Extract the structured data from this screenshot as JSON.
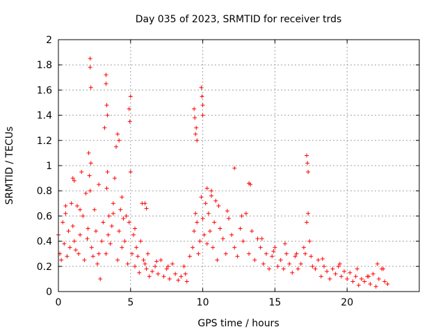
{
  "chart_data": {
    "type": "scatter",
    "title": "Day 035 of 2023, SRMTID for receiver trds",
    "xlabel": "GPS time / hours",
    "ylabel": "SRMTID / TECUs",
    "xlim": [
      0,
      25
    ],
    "ylim": [
      0,
      2
    ],
    "xticks": [
      0,
      5,
      10,
      15,
      20
    ],
    "yticks": [
      0,
      0.2,
      0.4,
      0.6,
      0.8,
      1,
      1.2,
      1.4,
      1.6,
      1.8,
      2
    ],
    "xtick_labels": [
      "0",
      "5",
      "10",
      "15",
      "20"
    ],
    "ytick_labels": [
      "0",
      "0.2",
      "0.4",
      "0.6",
      "0.8",
      "1",
      "1.2",
      "1.4",
      "1.6",
      "1.8",
      "2"
    ],
    "grid": true,
    "marker": "+",
    "color": "#ff0000",
    "series": [
      {
        "name": "SRMTID",
        "x": [
          0.0,
          0.1,
          0.2,
          0.3,
          0.4,
          0.5,
          0.6,
          0.7,
          0.8,
          0.9,
          1.0,
          1.1,
          1.2,
          1.3,
          1.4,
          1.5,
          1.6,
          1.7,
          1.8,
          1.9,
          2.0,
          2.05,
          2.1,
          2.15,
          2.2,
          2.25,
          2.3,
          2.4,
          2.5,
          2.6,
          2.7,
          2.8,
          2.9,
          3.0,
          3.1,
          3.2,
          3.3,
          3.35,
          3.4,
          3.45,
          3.5,
          3.6,
          3.7,
          3.8,
          3.9,
          4.0,
          4.1,
          4.2,
          4.3,
          4.4,
          4.5,
          4.6,
          4.7,
          4.8,
          4.9,
          5.0,
          5.1,
          5.2,
          5.3,
          5.4,
          5.5,
          5.6,
          5.7,
          5.8,
          5.9,
          6.0,
          6.1,
          6.2,
          6.3,
          6.5,
          6.7,
          6.9,
          7.1,
          7.3,
          7.5,
          7.7,
          7.9,
          8.1,
          8.3,
          8.5,
          8.7,
          8.9,
          9.1,
          9.3,
          9.4,
          9.5,
          9.6,
          9.7,
          9.8,
          9.9,
          10.0,
          10.1,
          10.2,
          10.3,
          10.4,
          10.5,
          10.6,
          10.7,
          10.8,
          10.9,
          11.0,
          11.2,
          11.4,
          11.6,
          11.8,
          12.0,
          12.2,
          12.4,
          12.6,
          12.8,
          13.0,
          13.2,
          13.4,
          13.6,
          13.8,
          14.0,
          14.2,
          14.4,
          14.6,
          14.8,
          15.0,
          15.2,
          15.4,
          15.6,
          15.8,
          16.0,
          16.2,
          16.4,
          16.6,
          16.8,
          17.0,
          17.1,
          17.2,
          17.3,
          17.4,
          17.5,
          17.6,
          17.8,
          18.0,
          18.2,
          18.4,
          18.6,
          18.8,
          19.0,
          19.2,
          19.4,
          19.6,
          19.8,
          20.0,
          20.2,
          20.4,
          20.6,
          20.8,
          21.0,
          21.2,
          21.4,
          21.6,
          21.8,
          22.0,
          22.2,
          22.4,
          22.6,
          22.8,
          2.2,
          2.2,
          2.25,
          3.3,
          3.3,
          3.35,
          3.4,
          9.4,
          9.45,
          9.5,
          9.55,
          9.6,
          9.9,
          9.95,
          10.0,
          10.0,
          17.2,
          17.25,
          17.3,
          4.9,
          4.95,
          5.0,
          4.1,
          4.2,
          1.0,
          1.1,
          12.2,
          13.2,
          13.3,
          6.0,
          6.1,
          0.5,
          1.5,
          2.8,
          3.8,
          4.4,
          5.3,
          6.8,
          7.6,
          8.8,
          10.3,
          10.6,
          11.1,
          11.7,
          12.7,
          14.1,
          14.9,
          15.7,
          16.5,
          18.3,
          19.5,
          20.7,
          21.5,
          22.1,
          22.5
        ],
        "y": [
          0.45,
          0.3,
          0.25,
          0.55,
          0.38,
          0.62,
          0.28,
          0.48,
          0.35,
          0.7,
          0.52,
          0.4,
          0.33,
          0.68,
          0.3,
          0.45,
          0.95,
          0.6,
          0.25,
          0.78,
          0.42,
          0.5,
          1.1,
          0.92,
          0.8,
          1.02,
          0.35,
          0.28,
          0.65,
          0.48,
          0.22,
          0.3,
          0.1,
          0.4,
          0.55,
          1.3,
          0.3,
          0.82,
          0.95,
          0.45,
          0.6,
          0.38,
          0.52,
          0.7,
          0.9,
          1.15,
          0.25,
          0.48,
          0.65,
          0.35,
          0.58,
          0.4,
          0.6,
          0.22,
          0.55,
          0.95,
          0.3,
          0.45,
          0.2,
          0.35,
          0.28,
          0.15,
          0.4,
          0.7,
          0.25,
          0.22,
          0.18,
          0.3,
          0.12,
          0.16,
          0.2,
          0.14,
          0.25,
          0.12,
          0.18,
          0.1,
          0.22,
          0.14,
          0.09,
          0.12,
          0.2,
          0.08,
          0.28,
          0.35,
          0.48,
          0.62,
          0.55,
          0.3,
          0.4,
          0.75,
          0.58,
          0.45,
          0.7,
          0.38,
          0.62,
          0.48,
          0.8,
          0.35,
          0.55,
          0.72,
          0.25,
          0.5,
          0.42,
          0.3,
          0.58,
          0.45,
          0.35,
          0.28,
          0.5,
          0.4,
          0.62,
          0.3,
          0.48,
          0.25,
          0.42,
          0.35,
          0.22,
          0.3,
          0.18,
          0.28,
          0.35,
          0.2,
          0.25,
          0.18,
          0.3,
          0.22,
          0.15,
          0.28,
          0.18,
          0.22,
          0.35,
          0.3,
          0.55,
          0.62,
          0.4,
          0.28,
          0.2,
          0.18,
          0.25,
          0.12,
          0.2,
          0.16,
          0.1,
          0.18,
          0.14,
          0.2,
          0.12,
          0.16,
          0.1,
          0.15,
          0.08,
          0.12,
          0.05,
          0.1,
          0.08,
          0.12,
          0.06,
          0.14,
          0.04,
          0.1,
          0.18,
          0.08,
          0.06,
          1.85,
          1.78,
          1.62,
          1.72,
          1.65,
          1.48,
          1.4,
          1.45,
          1.38,
          1.25,
          1.3,
          1.2,
          1.62,
          1.55,
          1.48,
          1.4,
          1.08,
          1.02,
          0.95,
          1.45,
          1.35,
          1.55,
          1.25,
          1.2,
          0.9,
          0.88,
          0.98,
          0.86,
          0.85,
          0.7,
          0.66,
          0.68,
          0.65,
          0.85,
          0.62,
          0.75,
          0.5,
          0.24,
          0.2,
          0.14,
          0.82,
          0.76,
          0.68,
          0.64,
          0.6,
          0.42,
          0.32,
          0.38,
          0.3,
          0.26,
          0.22,
          0.18,
          0.12,
          0.22,
          0.18
        ]
      }
    ]
  }
}
